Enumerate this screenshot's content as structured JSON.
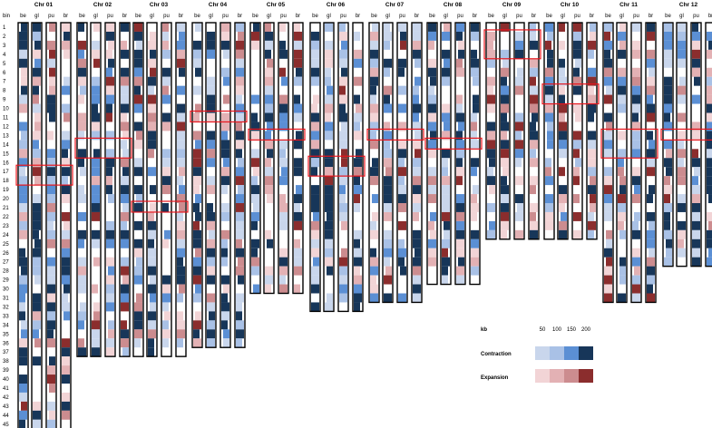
{
  "chart_data": {
    "type": "heatmap",
    "bin_header": "bin",
    "subtracks": [
      "be",
      "gl",
      "pu",
      "br"
    ],
    "bins": [
      "1",
      "2",
      "3",
      "4",
      "5",
      "6",
      "7",
      "8",
      "9",
      "10",
      "11",
      "12",
      "13",
      "14",
      "15",
      "16",
      "17",
      "18",
      "19",
      "20",
      "21",
      "22",
      "23",
      "24",
      "25",
      "26",
      "27",
      "28",
      "29",
      "30",
      "31",
      "32",
      "33",
      "34",
      "35",
      "36",
      "37",
      "38",
      "39",
      "40",
      "41",
      "42",
      "43",
      "44",
      "45"
    ],
    "chromosomes": [
      {
        "name": "Chr 01",
        "bins": 45,
        "highlights": [
          [
            17,
            18
          ]
        ]
      },
      {
        "name": "Chr 02",
        "bins": 37,
        "highlights": [
          [
            14,
            15
          ]
        ]
      },
      {
        "name": "Chr 03",
        "bins": 37,
        "highlights": [
          [
            21,
            21
          ]
        ]
      },
      {
        "name": "Chr 04",
        "bins": 36,
        "highlights": [
          [
            11,
            11
          ]
        ]
      },
      {
        "name": "Chr 05",
        "bins": 30,
        "highlights": [
          [
            13,
            13
          ]
        ]
      },
      {
        "name": "Chr 06",
        "bins": 32,
        "highlights": [
          [
            16,
            17
          ]
        ]
      },
      {
        "name": "Chr 07",
        "bins": 31,
        "highlights": [
          [
            13,
            13
          ]
        ]
      },
      {
        "name": "Chr 08",
        "bins": 29,
        "highlights": [
          [
            14,
            14
          ]
        ]
      },
      {
        "name": "Chr 09",
        "bins": 24,
        "highlights": [
          [
            2,
            4
          ]
        ]
      },
      {
        "name": "Chr 10",
        "bins": 24,
        "highlights": [
          [
            8,
            9
          ]
        ]
      },
      {
        "name": "Chr 11",
        "bins": 31,
        "highlights": [
          [
            13,
            15
          ]
        ]
      },
      {
        "name": "Chr 12",
        "bins": 27,
        "highlights": [
          [
            13,
            13
          ]
        ]
      }
    ],
    "scale": {
      "unit": "kb",
      "levels": [
        "50",
        "100",
        "150",
        "200"
      ],
      "contraction_label": "Contraction",
      "expansion_label": "Expansion",
      "contraction_colors": [
        "#c9d6ec",
        "#a9c1e6",
        "#5b8fd4",
        "#173659"
      ],
      "expansion_colors": [
        "#f2d4d6",
        "#e3b1b4",
        "#cc8c8f",
        "#8b2d2d"
      ]
    },
    "highlight_color": "#e8141c"
  }
}
